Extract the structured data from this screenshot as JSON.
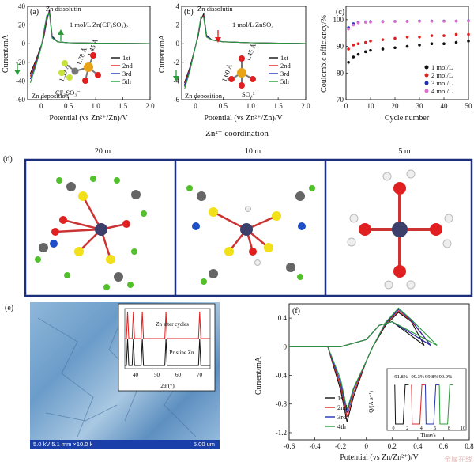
{
  "panel_a": {
    "letter": "(a)",
    "ylabel": "Current/mA",
    "xlabel": "Potential (vs Zn²⁺/Zn)/V",
    "xticks": [
      "0",
      "0.5",
      "1.0",
      "1.5",
      "2.0"
    ],
    "yticks": [
      "40",
      "20",
      "0",
      "-20",
      "-40",
      "-60"
    ],
    "label_top": "Zn dissolutin",
    "label_bottom": "Zn deposition",
    "electrolyte": "1 mol/L Zn(CF₃SO₃)₂",
    "anion": "CF₃SO₃⁻",
    "bond1": "1.78 Å",
    "bond2": "1.45 Å",
    "bond3": "1.39 Å",
    "legend": [
      "1st",
      "2nd",
      "3rd",
      "5th"
    ]
  },
  "panel_b": {
    "letter": "(b)",
    "ylabel": "Current/mA",
    "xlabel": "Potential (vs Zn²⁺/Zn)/V",
    "xticks": [
      "0",
      "0.5",
      "1.0",
      "1.5",
      "2.0"
    ],
    "yticks": [
      "4",
      "2",
      "0",
      "-2",
      "-4",
      "-6"
    ],
    "label_top": "Zn dissolutin",
    "label_bottom": "Zn deposition",
    "electrolyte": "1 mol/L ZnSO₄",
    "anion": "SO₄²⁻",
    "bond1": "1.60 Å",
    "bond2": "1.45 Å",
    "legend": [
      "1st",
      "2nd",
      "3rd",
      "5th"
    ]
  },
  "panel_c": {
    "letter": "(c)",
    "ylabel": "Coulombic efficiency/%",
    "xlabel": "Cycle number",
    "xticks": [
      "0",
      "10",
      "20",
      "30",
      "40",
      "50"
    ],
    "yticks": [
      "100",
      "90",
      "80",
      "70"
    ],
    "legend": [
      "1 mol/L",
      "2 mol/L",
      "3 mol/L",
      "4 mol/L"
    ]
  },
  "coordination_title": "Zn²⁺ coordination",
  "panel_d": {
    "letter": "(d)",
    "headers": [
      "20 m",
      "10 m",
      "5 m"
    ]
  },
  "panel_e": {
    "letter": "(e)",
    "sem_info": "5.0 kV 5.1 mm ×10.0 k",
    "scale": "5.00 um",
    "inset_label_top": "Zn after cycles",
    "inset_label_bottom": "Pristine Zn",
    "inset_xticks": [
      "40",
      "50",
      "60",
      "70"
    ],
    "inset_xlabel": "2θ/(°)"
  },
  "panel_f": {
    "letter": "(f)",
    "ylabel": "Current/mA",
    "xlabel": "Potential (vs Zn/Zn²⁺)/V",
    "xticks": [
      "-0.6",
      "-0.4",
      "-0.2",
      "0",
      "0.2",
      "0.4",
      "0.6",
      "0.8"
    ],
    "yticks": [
      "0.4",
      "0",
      "-0.4",
      "-0.8",
      "-1.2"
    ],
    "legend": [
      "1st",
      "2nd",
      "3rd",
      "4th"
    ],
    "inset_ylabel": "Q/(A·s⁻¹)",
    "inset_xlabel": "Time/s",
    "inset_xticks": [
      "0",
      "2",
      "4",
      "6",
      "8",
      "10"
    ],
    "inset_yticks": [
      "0.05",
      "0",
      "-0.05",
      "-0.10",
      "-0.15",
      "-0.20"
    ],
    "inset_efficiencies": [
      "91.8%",
      "99.3%",
      "99.8%",
      "99.9%"
    ],
    "watermark": "金属在线"
  },
  "colors": {
    "black": "#111111",
    "red": "#e02020",
    "blue": "#1f2fb8",
    "green": "#2a9a3a",
    "pink": "#e070d0",
    "frame": "#1c2f7a"
  },
  "chart_data": [
    {
      "type": "line",
      "title": "",
      "xlabel": "Potential (vs Zn²⁺/Zn)/V",
      "ylabel": "Current/mA",
      "xlim": [
        -0.25,
        2.0
      ],
      "ylim": [
        -60,
        40
      ],
      "series": [
        {
          "name": "1st",
          "x": [
            -0.2,
            -0.1,
            0,
            0.05,
            0.1,
            0.15,
            0.2,
            0.3,
            0.5,
            1.0,
            1.5,
            2.0
          ],
          "y": [
            -32,
            -18,
            -2,
            8,
            24,
            36,
            8,
            2,
            1,
            0.5,
            0.3,
            0.2
          ]
        },
        {
          "name": "2nd",
          "x": [
            -0.2,
            -0.1,
            0,
            0.05,
            0.1,
            0.15,
            0.2,
            0.3,
            0.5,
            1.0,
            1.5,
            2.0
          ],
          "y": [
            -35,
            -20,
            -3,
            10,
            26,
            34,
            7,
            2,
            1,
            0.5,
            0.3,
            0.2
          ]
        },
        {
          "name": "3rd",
          "x": [
            -0.2,
            -0.1,
            0,
            0.05,
            0.1,
            0.15,
            0.2,
            0.3,
            0.5,
            1.0,
            1.5,
            2.0
          ],
          "y": [
            -38,
            -22,
            -3,
            12,
            28,
            33,
            7,
            2,
            1,
            0.5,
            0.3,
            0.2
          ]
        },
        {
          "name": "5th",
          "x": [
            -0.2,
            -0.1,
            0,
            0.05,
            0.1,
            0.15,
            0.2,
            0.3,
            0.5,
            1.0,
            1.5,
            2.0
          ],
          "y": [
            -42,
            -24,
            -4,
            14,
            30,
            32,
            6,
            2,
            1,
            0.5,
            0.3,
            0.2
          ]
        }
      ]
    },
    {
      "type": "line",
      "title": "",
      "xlabel": "Potential (vs Zn²⁺/Zn)/V",
      "ylabel": "Current/mA",
      "xlim": [
        -0.25,
        2.0
      ],
      "ylim": [
        -6,
        4
      ],
      "series": [
        {
          "name": "1st",
          "x": [
            -0.2,
            -0.1,
            0,
            0.05,
            0.1,
            0.15,
            0.2,
            0.3,
            0.5,
            1.0,
            1.5,
            2.0
          ],
          "y": [
            -4.2,
            -2.5,
            -0.3,
            0.8,
            2.6,
            3.2,
            0.9,
            0.4,
            0.2,
            0.1,
            0.05,
            0.02
          ]
        },
        {
          "name": "2nd",
          "x": [
            -0.2,
            -0.1,
            0,
            0.05,
            0.1,
            0.15,
            0.2,
            0.3,
            0.5,
            1.0,
            1.5,
            2.0
          ],
          "y": [
            -4.4,
            -2.6,
            -0.3,
            0.9,
            2.7,
            3.0,
            0.8,
            0.4,
            0.2,
            0.1,
            0.05,
            0.02
          ]
        },
        {
          "name": "3rd",
          "x": [
            -0.2,
            -0.1,
            0,
            0.05,
            0.1,
            0.15,
            0.2,
            0.3,
            0.5,
            1.0,
            1.5,
            2.0
          ],
          "y": [
            -4.6,
            -2.7,
            -0.3,
            1.0,
            2.8,
            2.9,
            0.8,
            0.4,
            0.2,
            0.1,
            0.05,
            0.02
          ]
        },
        {
          "name": "5th",
          "x": [
            -0.2,
            -0.1,
            0,
            0.05,
            0.1,
            0.15,
            0.2,
            0.3,
            0.5,
            1.0,
            1.5,
            2.0
          ],
          "y": [
            -4.9,
            -2.9,
            -0.3,
            1.1,
            2.9,
            2.8,
            0.7,
            0.4,
            0.2,
            0.1,
            0.05,
            0.02
          ]
        }
      ]
    },
    {
      "type": "scatter",
      "title": "",
      "xlabel": "Cycle number",
      "ylabel": "Coulombic efficiency/%",
      "xlim": [
        0,
        50
      ],
      "ylim": [
        70,
        105
      ],
      "series": [
        {
          "name": "1 mol/L",
          "x": [
            1,
            3,
            5,
            8,
            10,
            15,
            20,
            25,
            30,
            35,
            40,
            45,
            50
          ],
          "y": [
            84,
            86,
            87,
            88,
            88.5,
            89,
            89.5,
            90,
            90.5,
            91,
            91,
            91.5,
            92
          ]
        },
        {
          "name": "2 mol/L",
          "x": [
            1,
            3,
            5,
            8,
            10,
            15,
            20,
            25,
            30,
            35,
            40,
            45,
            50
          ],
          "y": [
            89,
            90.5,
            91,
            91.5,
            92,
            92.5,
            93,
            93.5,
            93.5,
            94,
            94,
            94.5,
            94.5
          ]
        },
        {
          "name": "3 mol/L",
          "x": [
            1,
            3,
            5,
            8,
            10,
            15,
            20,
            25,
            30,
            35,
            40,
            45,
            50
          ],
          "y": [
            97,
            98.5,
            99,
            99.2,
            99.3,
            99.3,
            99.4,
            99.4,
            99.5,
            99.5,
            99.5,
            99.5,
            99.6
          ]
        },
        {
          "name": "4 mol/L",
          "x": [
            1,
            3,
            5,
            8,
            10,
            15,
            20,
            25,
            30,
            35,
            40,
            45,
            50
          ],
          "y": [
            96.5,
            98,
            98.8,
            99,
            99.1,
            99.2,
            99.3,
            99.3,
            99.4,
            99.4,
            99.4,
            99.5,
            99.5
          ]
        }
      ]
    },
    {
      "type": "line",
      "title": "",
      "xlabel": "Potential (vs Zn/Zn²⁺)/V",
      "ylabel": "Current/mA",
      "xlim": [
        -0.6,
        0.8
      ],
      "ylim": [
        -1.3,
        0.6
      ],
      "series": [
        {
          "name": "1st",
          "x": [
            -0.6,
            -0.3,
            -0.2,
            -0.15,
            -0.1,
            0,
            0.05,
            0.15,
            0.25,
            0.35,
            0.45,
            0.2,
            0.1,
            0,
            -0.2,
            -0.6
          ],
          "y": [
            0,
            0,
            -0.6,
            -1.05,
            -0.7,
            -0.2,
            0,
            0.3,
            0.48,
            0.35,
            0.02,
            0.35,
            0.3,
            0.1,
            0,
            0
          ]
        },
        {
          "name": "2nd",
          "x": [
            -0.6,
            -0.3,
            -0.2,
            -0.15,
            -0.1,
            0,
            0.05,
            0.15,
            0.25,
            0.35,
            0.5,
            0.2,
            0.1,
            0,
            -0.2,
            -0.6
          ],
          "y": [
            0,
            0,
            -0.55,
            -0.98,
            -0.65,
            -0.2,
            0,
            0.32,
            0.5,
            0.36,
            0.02,
            0.35,
            0.3,
            0.1,
            0,
            0
          ]
        },
        {
          "name": "3rd",
          "x": [
            -0.6,
            -0.3,
            -0.2,
            -0.15,
            -0.1,
            0,
            0.05,
            0.15,
            0.25,
            0.35,
            0.5,
            0.2,
            0.1,
            0,
            -0.2,
            -0.6
          ],
          "y": [
            0,
            0,
            -0.5,
            -0.92,
            -0.6,
            -0.2,
            0,
            0.33,
            0.52,
            0.37,
            0.02,
            0.35,
            0.3,
            0.1,
            0,
            0
          ]
        },
        {
          "name": "4th",
          "x": [
            -0.6,
            -0.3,
            -0.2,
            -0.15,
            -0.1,
            0,
            0.05,
            0.15,
            0.25,
            0.35,
            0.55,
            0.2,
            0.1,
            0,
            -0.2,
            -0.6
          ],
          "y": [
            0,
            0,
            -0.45,
            -0.88,
            -0.58,
            -0.2,
            0,
            0.34,
            0.54,
            0.38,
            0.02,
            0.35,
            0.3,
            0.1,
            0,
            0
          ]
        }
      ]
    }
  ]
}
